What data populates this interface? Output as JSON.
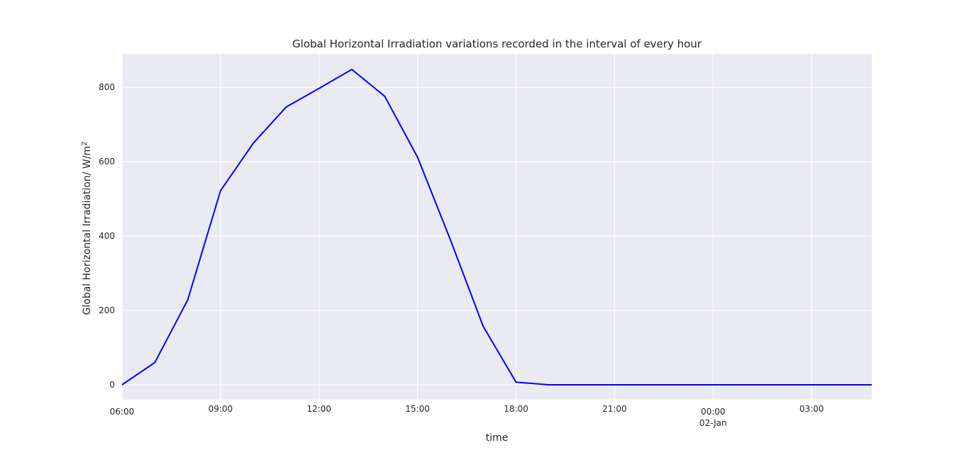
{
  "chart_data": {
    "type": "line",
    "title": "Global Horizontal Irradiation variations recorded in the interval of every hour",
    "xlabel": "time",
    "ylabel": "Global Horizontal Irradiation/ W/m",
    "ylabel_superscript": "2",
    "x_start": "06:00",
    "xlim": [
      "06:00",
      "04:50 (02-Jan)"
    ],
    "ylim": [
      -40,
      890
    ],
    "yticks": [
      0,
      200,
      400,
      600,
      800
    ],
    "xticks": [
      {
        "at": "06:00",
        "label": "06:00",
        "sublabel": ""
      },
      {
        "at": "09:00",
        "label": "09:00",
        "sublabel": ""
      },
      {
        "at": "12:00",
        "label": "12:00",
        "sublabel": ""
      },
      {
        "at": "15:00",
        "label": "15:00",
        "sublabel": ""
      },
      {
        "at": "18:00",
        "label": "18:00",
        "sublabel": ""
      },
      {
        "at": "21:00",
        "label": "21:00",
        "sublabel": ""
      },
      {
        "at": "00:00 (02-Jan)",
        "label": "00:00",
        "sublabel": "02-Jan"
      },
      {
        "at": "03:00 (02-Jan)",
        "label": "03:00",
        "sublabel": ""
      }
    ],
    "grid": true,
    "series": [
      {
        "color": "#0000ff",
        "x": [
          "06:00",
          "07:00",
          "08:00",
          "09:00",
          "10:00",
          "11:00",
          "12:00",
          "13:00",
          "14:00",
          "15:00",
          "16:00",
          "17:00",
          "18:00",
          "19:00",
          "20:00",
          "21:00",
          "22:00",
          "23:00",
          "00:00 (02-Jan)",
          "01:00 (02-Jan)",
          "02:00 (02-Jan)",
          "03:00 (02-Jan)",
          "04:00 (02-Jan)",
          "04:50 (02-Jan)"
        ],
        "y": [
          0,
          60,
          228,
          522,
          650,
          747,
          797,
          848,
          776,
          612,
          390,
          157,
          7,
          0,
          0,
          0,
          0,
          0,
          0,
          0,
          0,
          0,
          0,
          0
        ]
      }
    ]
  }
}
